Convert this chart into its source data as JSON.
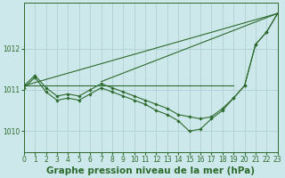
{
  "background_color": "#cde8ea",
  "grid_color": "#b0d0d2",
  "line_color": "#2d6a2d",
  "marker_color": "#2d6a2d",
  "title": "Graphe pression niveau de la mer (hPa)",
  "xlim": [
    0,
    23
  ],
  "ylim": [
    1009.5,
    1013.1
  ],
  "yticks": [
    1010,
    1011,
    1012
  ],
  "xtick_labels": [
    "0",
    "1",
    "2",
    "3",
    "4",
    "5",
    "6",
    "7",
    "8",
    "9",
    "10",
    "11",
    "12",
    "13",
    "14",
    "15",
    "16",
    "17",
    "18",
    "19",
    "20",
    "21",
    "22",
    "23"
  ],
  "series": [
    {
      "x": [
        0,
        23
      ],
      "y": [
        1011.1,
        1012.85
      ],
      "marker": false
    },
    {
      "x": [
        0,
        1,
        2,
        3,
        4,
        5,
        6,
        7,
        8,
        9,
        10,
        11,
        12,
        13,
        14,
        15,
        16,
        17,
        18,
        19,
        20,
        21,
        22,
        23
      ],
      "y": [
        1011.1,
        1011.35,
        1011.05,
        1010.85,
        1010.9,
        1010.85,
        1011.0,
        1011.15,
        1011.05,
        1010.95,
        1010.85,
        1010.75,
        1010.65,
        1010.55,
        1010.4,
        1010.35,
        1010.3,
        1010.35,
        1010.55,
        1010.8,
        1011.1,
        1012.1,
        1012.4,
        1012.85
      ],
      "marker": true
    },
    {
      "x": [
        0,
        1,
        2,
        3,
        4,
        5,
        6,
        7,
        8,
        9,
        10,
        11,
        12,
        13,
        14,
        15,
        16,
        17,
        18,
        19,
        20,
        21,
        22,
        23
      ],
      "y": [
        1011.05,
        1011.3,
        1010.95,
        1010.75,
        1010.8,
        1010.75,
        1010.9,
        1011.05,
        1010.95,
        1010.85,
        1010.75,
        1010.65,
        1010.5,
        1010.4,
        1010.25,
        1010.0,
        1010.05,
        1010.3,
        1010.5,
        1010.8,
        1011.1,
        1012.1,
        1012.4,
        1012.85
      ],
      "marker": true
    },
    {
      "x": [
        0,
        19
      ],
      "y": [
        1011.1,
        1011.1
      ],
      "marker": false
    },
    {
      "x": [
        7,
        23
      ],
      "y": [
        1011.2,
        1012.85
      ],
      "marker": false
    }
  ],
  "title_fontsize": 7.5,
  "tick_fontsize": 5.5
}
